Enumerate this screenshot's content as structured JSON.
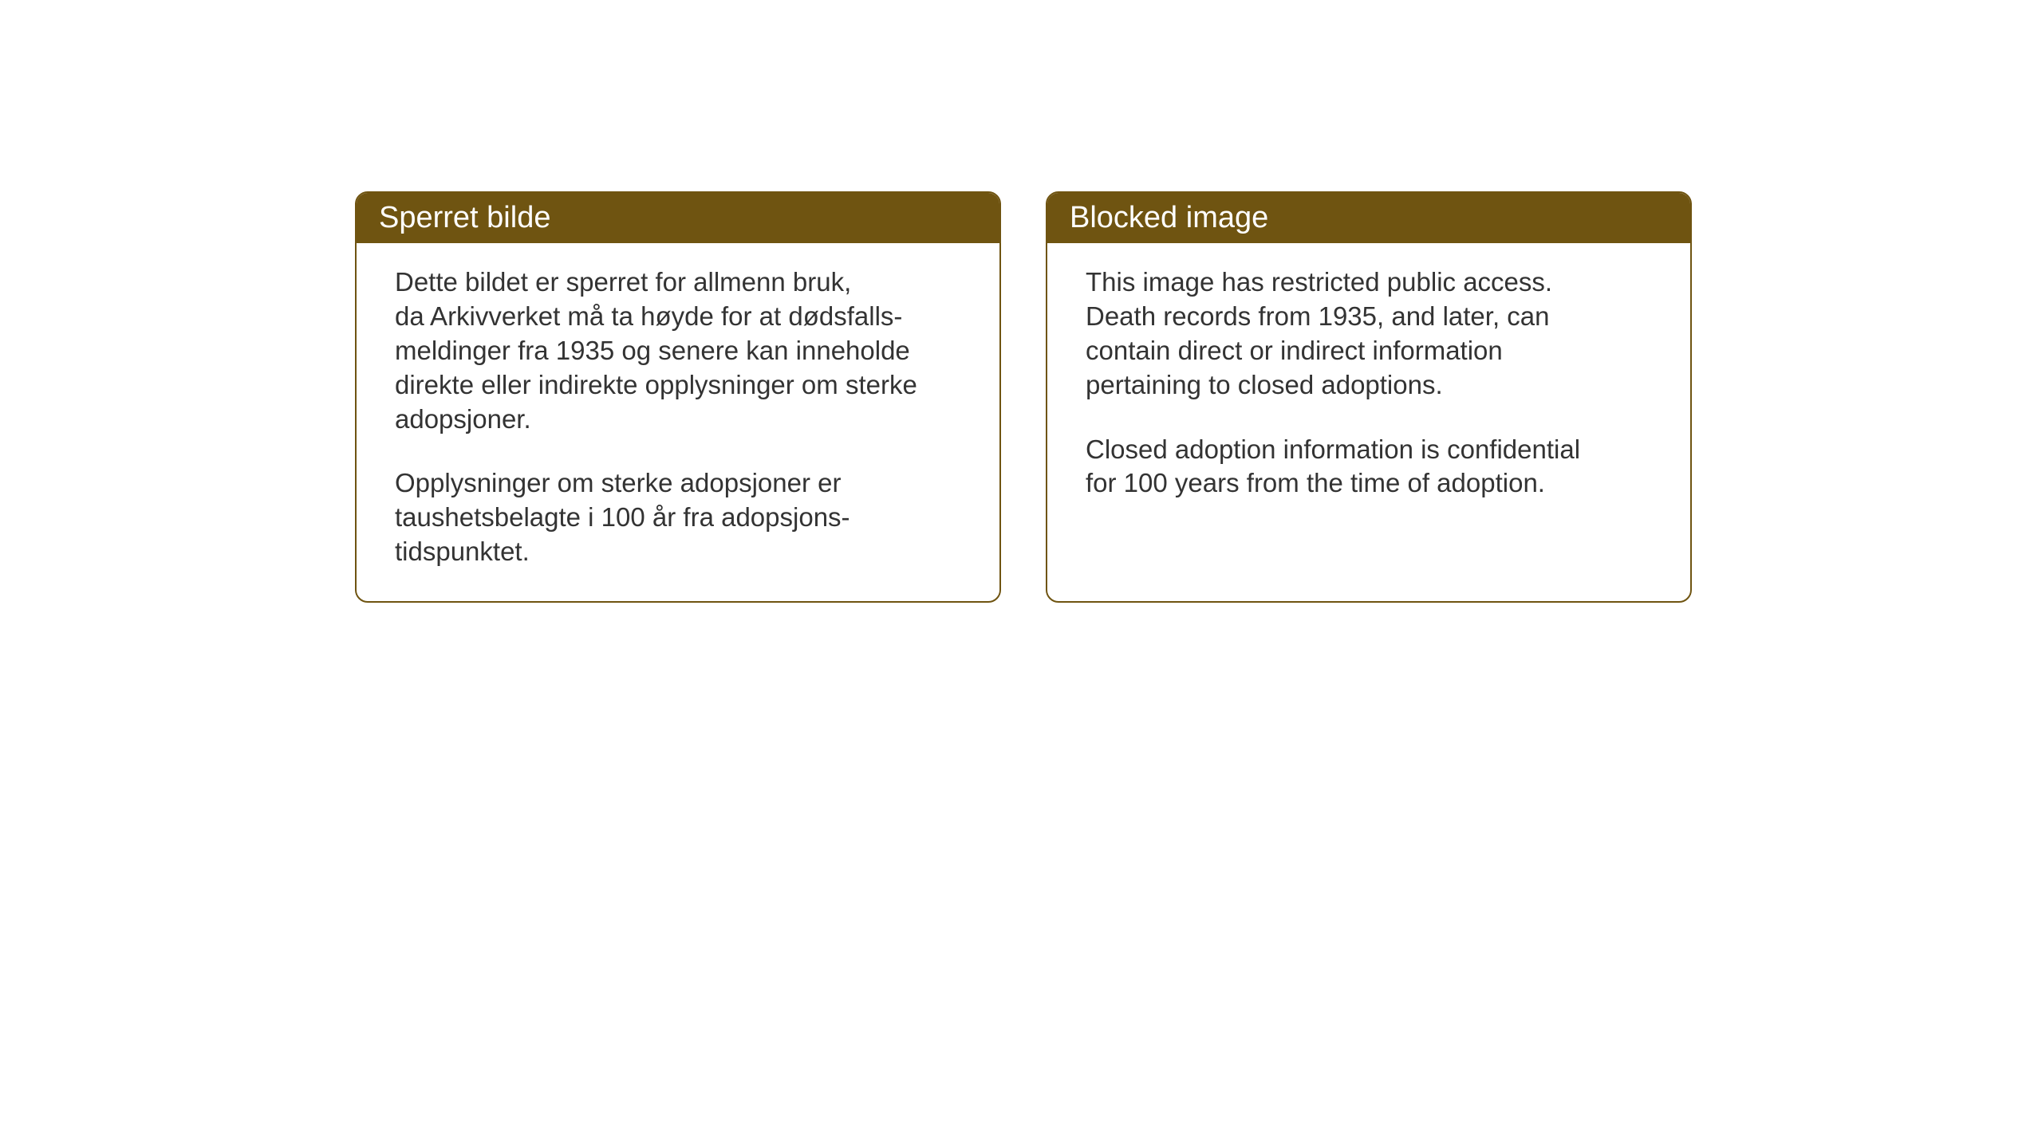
{
  "cards": [
    {
      "title": "Sperret bilde",
      "p1_l1": "Dette bildet er sperret for allmenn bruk,",
      "p1_l2": "da Arkivverket må ta høyde for at dødsfalls-",
      "p1_l3": "meldinger fra 1935 og senere kan inneholde",
      "p1_l4": "direkte eller indirekte opplysninger om sterke",
      "p1_l5": "adopsjoner.",
      "p2_l1": "Opplysninger om sterke adopsjoner er",
      "p2_l2": "taushetsbelagte i 100 år fra adopsjons-",
      "p2_l3": "tidspunktet."
    },
    {
      "title": "Blocked image",
      "p1_l1": "This image has restricted public access.",
      "p1_l2": "Death records from 1935, and later, can",
      "p1_l3": "contain direct or indirect information",
      "p1_l4": "pertaining to closed adoptions.",
      "p1_l5": "",
      "p2_l1": "Closed adoption information is confidential",
      "p2_l2": "for 100 years from the time of adoption.",
      "p2_l3": ""
    }
  ],
  "styling": {
    "header_bg": "#6f5411",
    "header_text": "#ffffff",
    "border_color": "#6f5411",
    "body_text": "#333333",
    "card_bg": "#ffffff",
    "page_bg": "#ffffff",
    "header_fontsize": 38,
    "body_fontsize": 33,
    "border_radius": 16,
    "border_width": 2
  }
}
